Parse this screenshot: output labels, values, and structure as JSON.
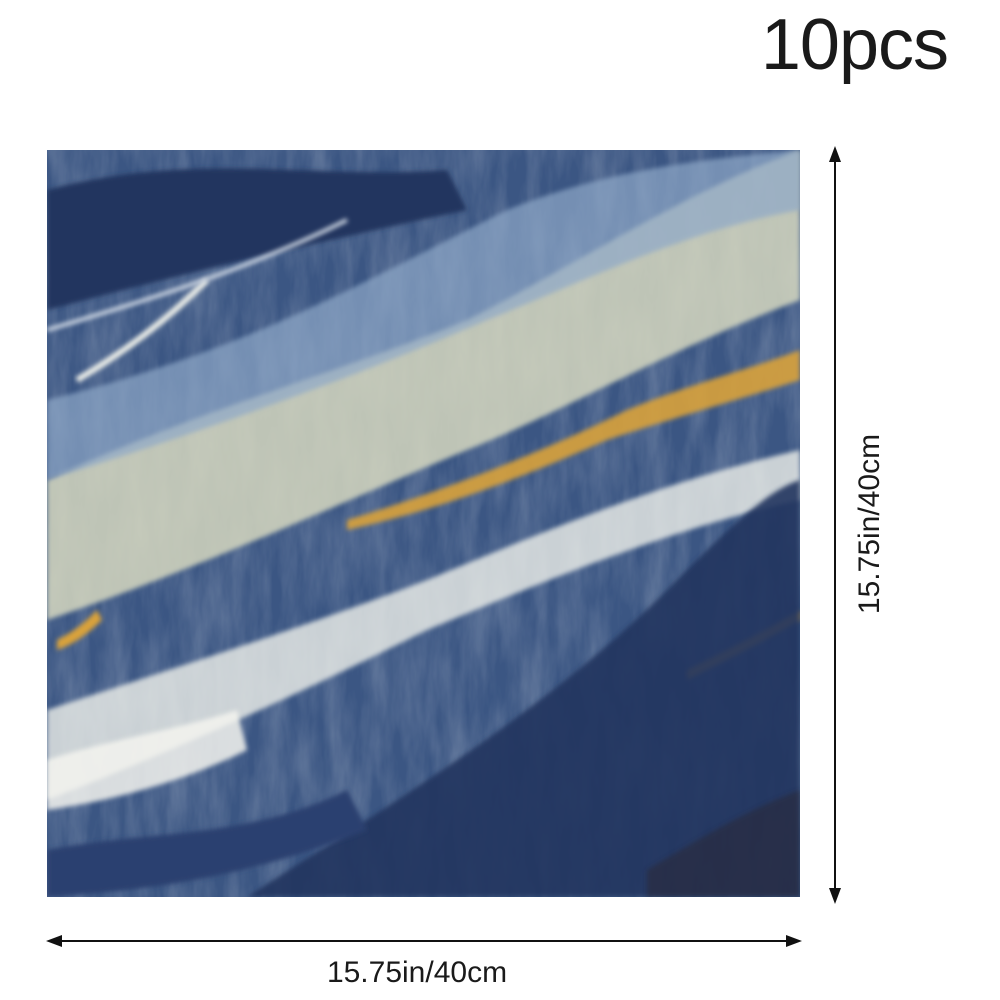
{
  "quantity_label": "10pcs",
  "dimensions": {
    "width_label": "15.75in/40cm",
    "height_label": "15.75in/40cm"
  },
  "tile": {
    "pattern": "blue marble with cream, white and gold veins",
    "colors": [
      "#3b5683",
      "#243a66",
      "#d8d9c2",
      "#f2f2ec",
      "#d9a23a",
      "#7f9cc0"
    ]
  }
}
